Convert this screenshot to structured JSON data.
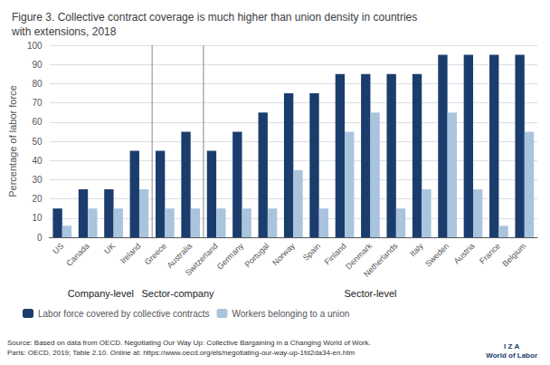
{
  "chart_data": {
    "type": "bar",
    "title": "Figure 3. Collective contract coverage is much higher than union density in countries\nwith extensions, 2018",
    "ylabel": "Percentage of labor force",
    "categories": [
      "US",
      "Canada",
      "UK",
      "Ireland",
      "Greece",
      "Australia",
      "Switzerland",
      "Germany",
      "Portugal",
      "Norway",
      "Spain",
      "Finland",
      "Denmark",
      "Netherlands",
      "Italy",
      "Sweden",
      "Austria",
      "France",
      "Belgium"
    ],
    "series": [
      {
        "name": "Labor force covered by collective contracts",
        "color": "#1a3d6e",
        "values": [
          15,
          25,
          25,
          45,
          45,
          55,
          45,
          55,
          65,
          75,
          75,
          85,
          85,
          85,
          85,
          95,
          95,
          95,
          95
        ]
      },
      {
        "name": "Workers belonging to a union",
        "color": "#aac4de",
        "values": [
          6,
          15,
          15,
          25,
          15,
          15,
          15,
          15,
          15,
          35,
          15,
          55,
          65,
          15,
          25,
          65,
          25,
          6,
          55
        ]
      }
    ],
    "groups": [
      {
        "name": "Company-level",
        "categories": [
          "US",
          "Canada",
          "UK",
          "Ireland"
        ]
      },
      {
        "name": "Sector-company",
        "categories": [
          "Greece",
          "Australia"
        ]
      },
      {
        "name": "Sector-level",
        "categories": [
          "Switzerland",
          "Germany",
          "Portugal",
          "Norway",
          "Spain",
          "Finland",
          "Denmark",
          "Netherlands",
          "Italy",
          "Sweden",
          "Austria",
          "France",
          "Belgium"
        ]
      }
    ],
    "annotations": [
      "Source: Based on data from OECD. Negotiating Our Way Up: Collective Bargaining in a Changing World of Work.\nParis: OECD, 2019; Table 2.10. Online at: https://www.oecd.org/els/negotiating-our-way-up-1fd2da34-en.htm",
      "I Z A\nWorld of Labor"
    ],
    "ylim": [
      0,
      100
    ],
    "yticks": [
      0,
      10,
      20,
      30,
      40,
      50,
      60,
      70,
      80,
      90,
      100
    ],
    "grid": true,
    "legend": "lower left"
  }
}
